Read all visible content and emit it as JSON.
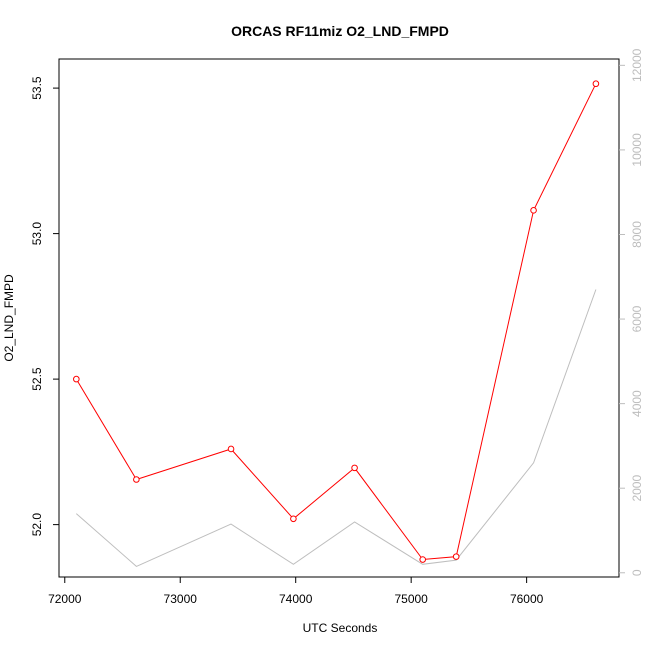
{
  "chart_data": {
    "type": "line",
    "title": "ORCAS RF11miz O2_LND_FMPD",
    "xlabel": "UTC Seconds",
    "ylabel": "O2_LND_FMPD",
    "xlim": [
      71950,
      76800
    ],
    "ylim": [
      51.82,
      53.6
    ],
    "y2lim": [
      -100,
      12150
    ],
    "x_ticks": [
      72000,
      73000,
      74000,
      75000,
      76000
    ],
    "y_ticks": [
      52.0,
      52.5,
      53.0,
      53.5
    ],
    "y2_ticks": [
      0,
      2000,
      4000,
      6000,
      8000,
      10000,
      12000
    ],
    "series": [
      {
        "axis": "left",
        "color": "#ff0000",
        "markers": true,
        "x": [
          72100,
          72620,
          73440,
          73980,
          74510,
          75100,
          75390,
          76060,
          76600
        ],
        "y": [
          52.5,
          52.155,
          52.26,
          52.02,
          52.195,
          51.88,
          51.89,
          53.08,
          53.515
        ]
      },
      {
        "axis": "right",
        "color": "#bebebe",
        "markers": false,
        "x": [
          72100,
          72620,
          73440,
          73980,
          74510,
          75100,
          75390,
          76060,
          76600
        ],
        "y": [
          1400,
          150,
          1150,
          200,
          1200,
          200,
          300,
          2600,
          6700
        ]
      }
    ]
  }
}
